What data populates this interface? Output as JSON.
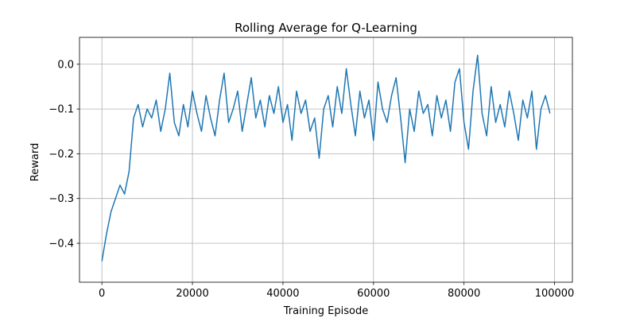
{
  "chart_data": {
    "type": "line",
    "title": "Rolling Average for Q-Learning",
    "x_label": "Training Episode",
    "y_label": "Reward",
    "x": [
      0,
      1000,
      2000,
      3000,
      4000,
      5000,
      6000,
      7000,
      8000,
      9000,
      10000,
      11000,
      12000,
      13000,
      14000,
      15000,
      16000,
      17000,
      18000,
      19000,
      20000,
      21000,
      22000,
      23000,
      24000,
      25000,
      26000,
      27000,
      28000,
      29000,
      30000,
      31000,
      32000,
      33000,
      34000,
      35000,
      36000,
      37000,
      38000,
      39000,
      40000,
      41000,
      42000,
      43000,
      44000,
      45000,
      46000,
      47000,
      48000,
      49000,
      50000,
      51000,
      52000,
      53000,
      54000,
      55000,
      56000,
      57000,
      58000,
      59000,
      60000,
      61000,
      62000,
      63000,
      64000,
      65000,
      66000,
      67000,
      68000,
      69000,
      70000,
      71000,
      72000,
      73000,
      74000,
      75000,
      76000,
      77000,
      78000,
      79000,
      80000,
      81000,
      82000,
      83000,
      84000,
      85000,
      86000,
      87000,
      88000,
      89000,
      90000,
      91000,
      92000,
      93000,
      94000,
      95000,
      96000,
      97000,
      98000,
      99000
    ],
    "values": [
      -0.44,
      -0.38,
      -0.33,
      -0.3,
      -0.27,
      -0.29,
      -0.24,
      -0.12,
      -0.09,
      -0.14,
      -0.1,
      -0.12,
      -0.08,
      -0.15,
      -0.1,
      -0.02,
      -0.13,
      -0.16,
      -0.09,
      -0.14,
      -0.06,
      -0.11,
      -0.15,
      -0.07,
      -0.12,
      -0.16,
      -0.08,
      -0.02,
      -0.13,
      -0.1,
      -0.06,
      -0.15,
      -0.09,
      -0.03,
      -0.12,
      -0.08,
      -0.14,
      -0.07,
      -0.11,
      -0.05,
      -0.13,
      -0.09,
      -0.17,
      -0.06,
      -0.11,
      -0.08,
      -0.15,
      -0.12,
      -0.21,
      -0.1,
      -0.07,
      -0.14,
      -0.05,
      -0.11,
      -0.01,
      -0.09,
      -0.16,
      -0.06,
      -0.12,
      -0.08,
      -0.17,
      -0.04,
      -0.1,
      -0.13,
      -0.07,
      -0.03,
      -0.12,
      -0.22,
      -0.1,
      -0.15,
      -0.06,
      -0.11,
      -0.09,
      -0.16,
      -0.07,
      -0.12,
      -0.08,
      -0.15,
      -0.04,
      -0.01,
      -0.13,
      -0.19,
      -0.06,
      0.02,
      -0.11,
      -0.16,
      -0.05,
      -0.13,
      -0.09,
      -0.14,
      -0.06,
      -0.11,
      -0.17,
      -0.08,
      -0.12,
      -0.06,
      -0.19,
      -0.1,
      -0.07,
      -0.11
    ],
    "color": "#1f77b4",
    "xlim": [
      -4950,
      103950
    ],
    "xticks": [
      0,
      20000,
      40000,
      60000,
      80000,
      100000
    ],
    "ylim": [
      -0.487,
      0.06
    ],
    "yticks": [
      {
        "value": -0.4,
        "label": "−0.4"
      },
      {
        "value": -0.3,
        "label": "−0.3"
      },
      {
        "value": -0.2,
        "label": "−0.2"
      },
      {
        "value": -0.1,
        "label": "−0.1"
      },
      {
        "value": 0,
        "label": "0.0"
      }
    ],
    "grid": true
  }
}
